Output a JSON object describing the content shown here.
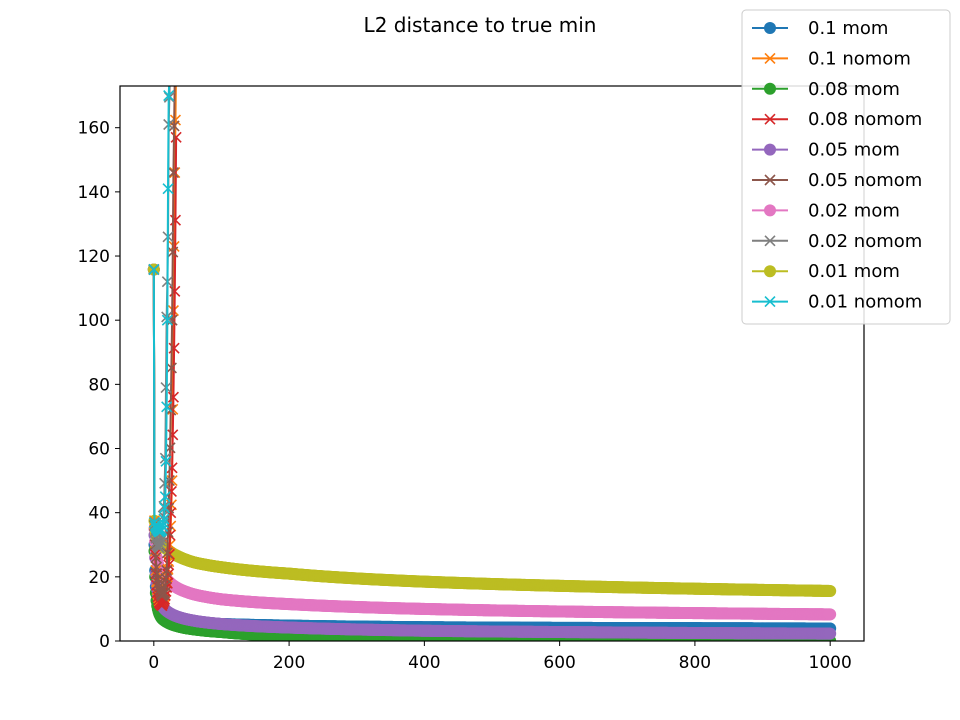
{
  "chart_data": {
    "type": "line",
    "title": "L2 distance to true min",
    "xlabel": "",
    "ylabel": "",
    "xlim": [
      -50,
      1050
    ],
    "ylim": [
      0,
      173
    ],
    "x_ticks": [
      0,
      200,
      400,
      600,
      800,
      1000
    ],
    "y_ticks": [
      0,
      20,
      40,
      60,
      80,
      100,
      120,
      140,
      160
    ],
    "grid": false,
    "legend_position": "top-right",
    "series": [
      {
        "name": "0.1 mom",
        "color": "#1f77b4",
        "marker": "circle",
        "x": [
          0,
          1,
          2,
          3,
          5,
          8,
          12,
          20,
          35,
          60,
          100,
          200,
          300,
          400,
          600,
          800,
          1000
        ],
        "y": [
          115.8,
          30,
          22,
          17,
          13,
          10.5,
          8.8,
          7.6,
          6.6,
          5.9,
          5.3,
          4.8,
          4.5,
          4.3,
          4.1,
          4.0,
          3.9
        ]
      },
      {
        "name": "0.1 nomom",
        "color": "#ff7f0e",
        "marker": "x",
        "x": [
          0,
          1,
          2,
          3,
          5,
          8,
          12,
          16,
          20,
          24,
          27,
          29,
          31,
          33
        ],
        "y": [
          115.8,
          37.5,
          28,
          22,
          16,
          12.5,
          12,
          14,
          20,
          30,
          50,
          103,
          146,
          180
        ]
      },
      {
        "name": "0.08 mom",
        "color": "#2ca02c",
        "marker": "circle",
        "x": [
          0,
          1,
          2,
          3,
          5,
          8,
          12,
          20,
          35,
          60,
          100,
          200,
          300,
          400,
          500,
          600,
          800,
          1000
        ],
        "y": [
          115.8,
          28,
          20,
          15,
          11,
          8.5,
          7,
          5.8,
          4.6,
          3.6,
          2.8,
          1.6,
          1.0,
          0.6,
          0.3,
          0.2,
          0.1,
          0.05
        ]
      },
      {
        "name": "0.08 nomom",
        "color": "#d62728",
        "marker": "x",
        "x": [
          0,
          1,
          2,
          3,
          5,
          8,
          12,
          16,
          20,
          23,
          25,
          27,
          29,
          31,
          33
        ],
        "y": [
          115.8,
          37,
          27,
          21,
          15,
          12,
          11,
          13,
          18,
          27,
          40,
          54,
          76,
          109,
          157
        ]
      },
      {
        "name": "0.05 mom",
        "color": "#9467bd",
        "marker": "circle",
        "x": [
          0,
          1,
          2,
          3,
          5,
          8,
          12,
          20,
          35,
          60,
          100,
          200,
          300,
          400,
          600,
          800,
          1000
        ],
        "y": [
          115.8,
          33,
          26,
          21,
          16,
          13,
          11,
          9.2,
          7.6,
          6.3,
          5.3,
          4.2,
          3.6,
          3.2,
          2.8,
          2.5,
          2.3
        ]
      },
      {
        "name": "0.05 nomom",
        "color": "#8c564b",
        "marker": "x",
        "x": [
          0,
          1,
          2,
          3,
          5,
          8,
          12,
          16,
          19,
          21,
          23,
          25,
          27,
          29,
          31
        ],
        "y": [
          115.8,
          36,
          30,
          26,
          21,
          17,
          14,
          15,
          22,
          34,
          50,
          72,
          100,
          146,
          176
        ]
      },
      {
        "name": "0.02 mom",
        "color": "#e377c2",
        "marker": "circle",
        "x": [
          0,
          1,
          2,
          3,
          5,
          8,
          12,
          20,
          35,
          60,
          100,
          200,
          300,
          400,
          600,
          800,
          1000
        ],
        "y": [
          115.8,
          35,
          31,
          28,
          25,
          23,
          21,
          19,
          16.5,
          14.5,
          13,
          11.5,
          10.6,
          10,
          9.2,
          8.7,
          8.3
        ]
      },
      {
        "name": "0.02 nomom",
        "color": "#7f7f7f",
        "marker": "x",
        "x": [
          0,
          1,
          2,
          3,
          5,
          8,
          12,
          15,
          17,
          18,
          19,
          20,
          21,
          22,
          24
        ],
        "y": [
          115.8,
          37,
          34,
          32,
          30,
          29,
          33,
          42,
          57,
          79,
          101,
          112,
          126,
          161,
          178
        ]
      },
      {
        "name": "0.01 mom",
        "color": "#bcbd22",
        "marker": "circle",
        "x": [
          0,
          1,
          2,
          3,
          5,
          8,
          12,
          20,
          35,
          60,
          100,
          200,
          300,
          400,
          600,
          800,
          1000
        ],
        "y": [
          115.8,
          37.5,
          35,
          33.5,
          32,
          31,
          30,
          28.5,
          26.5,
          24.5,
          23,
          21,
          19.5,
          18.5,
          17.2,
          16.3,
          15.6
        ]
      },
      {
        "name": "0.01 nomom",
        "color": "#17becf",
        "marker": "x",
        "x": [
          0,
          1,
          2,
          3,
          5,
          8,
          12,
          15,
          17,
          18,
          19,
          20,
          21,
          22,
          24
        ],
        "y": [
          115.8,
          37,
          36,
          35.5,
          35,
          34,
          34.5,
          38,
          45,
          56,
          73,
          100,
          141,
          170,
          180
        ]
      }
    ]
  }
}
